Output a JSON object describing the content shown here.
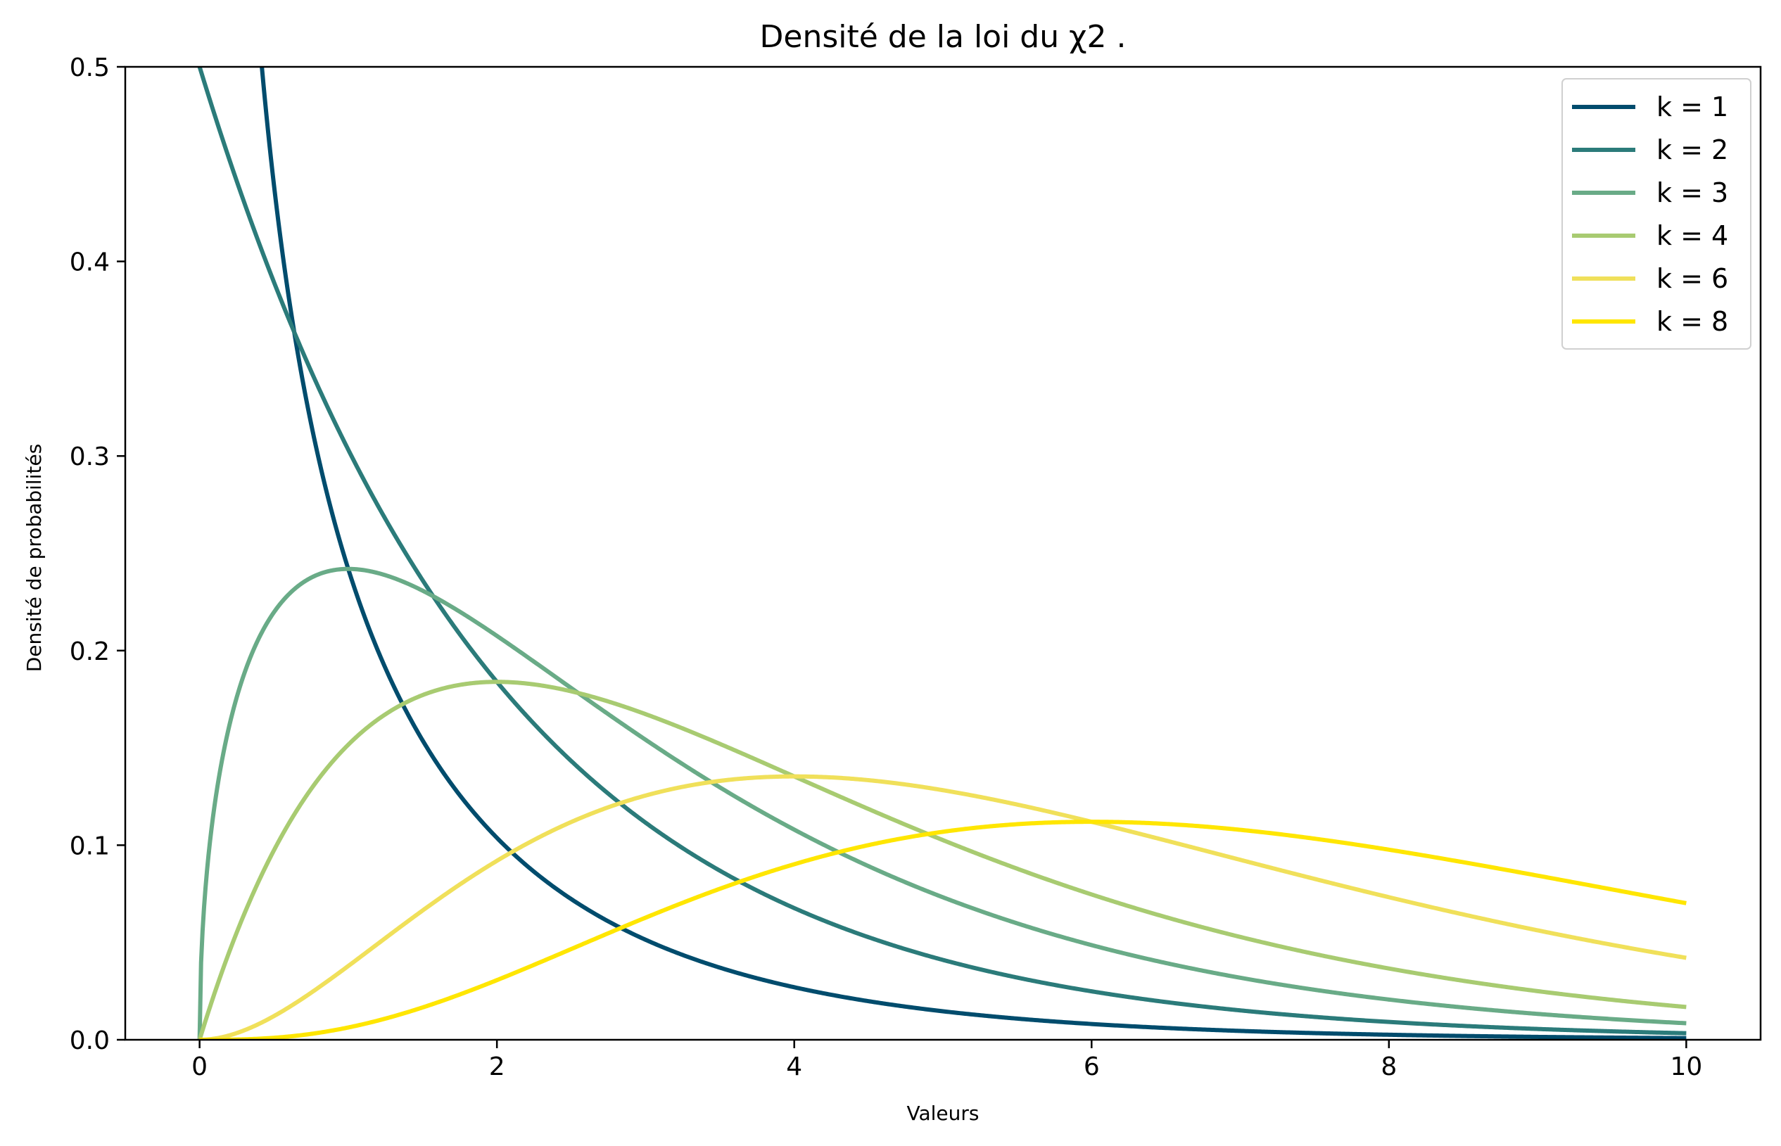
{
  "chart_data": {
    "type": "line",
    "title": "Densité de la loi du χ2 .",
    "xlabel": "Valeurs",
    "ylabel": "Densité de probabilités",
    "xlim": [
      -0.5,
      10.5
    ],
    "ylim": [
      0,
      0.5
    ],
    "x_ticks": [
      0,
      2,
      4,
      6,
      8,
      10
    ],
    "y_ticks": [
      0.0,
      0.1,
      0.2,
      0.3,
      0.4,
      0.5
    ],
    "x_tick_labels": [
      "0",
      "2",
      "4",
      "6",
      "8",
      "10"
    ],
    "y_tick_labels": [
      "0.0",
      "0.1",
      "0.2",
      "0.3",
      "0.4",
      "0.5"
    ],
    "x_range": [
      0,
      10
    ],
    "legend_position": "top-right",
    "grid": false,
    "series": [
      {
        "name": "k = 1",
        "k": 1,
        "color": "#004c6d"
      },
      {
        "name": "k = 2",
        "k": 2,
        "color": "#2b7b7a"
      },
      {
        "name": "k = 3",
        "k": 3,
        "color": "#69ab87"
      },
      {
        "name": "k = 4",
        "k": 4,
        "color": "#a8cb71"
      },
      {
        "name": "k = 6",
        "k": 6,
        "color": "#f0e05a"
      },
      {
        "name": "k = 8",
        "k": 8,
        "color": "#ffe600"
      }
    ]
  }
}
